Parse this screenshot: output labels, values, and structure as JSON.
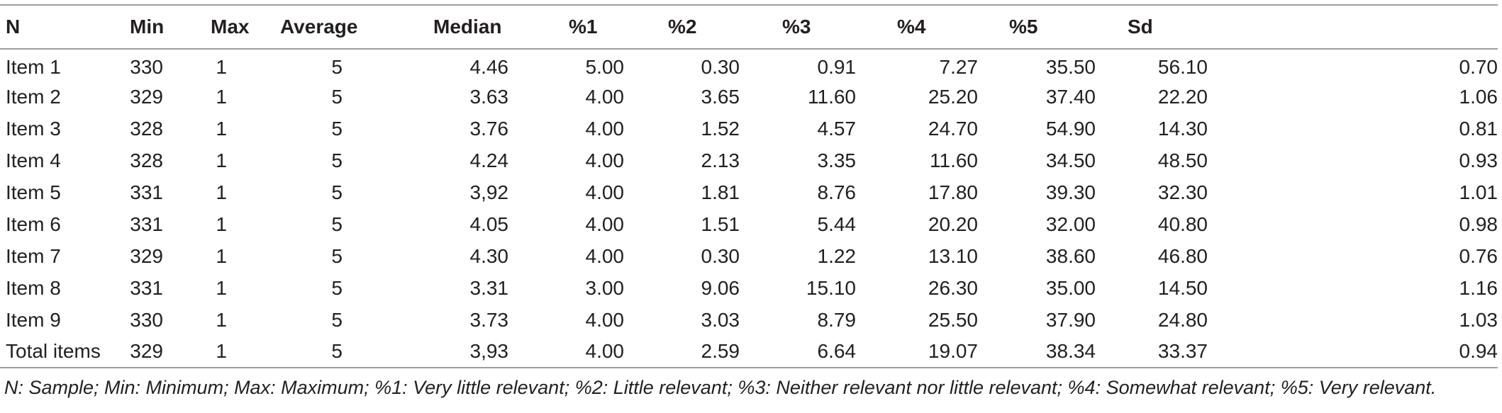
{
  "table": {
    "headers": [
      "N",
      "Min",
      "Max",
      "Average",
      "Median",
      "%1",
      "%2",
      "%3",
      "%4",
      "%5",
      "Sd",
      ""
    ],
    "rows": [
      [
        "Item 1",
        "330",
        "1",
        "5",
        "4.46",
        "5.00",
        "0.30",
        "0.91",
        "7.27",
        "35.50",
        "56.10",
        "0.70"
      ],
      [
        "Item 2",
        "329",
        "1",
        "5",
        "3.63",
        "4.00",
        "3.65",
        "11.60",
        "25.20",
        "37.40",
        "22.20",
        "1.06"
      ],
      [
        "Item 3",
        "328",
        "1",
        "5",
        "3.76",
        "4.00",
        "1.52",
        "4.57",
        "24.70",
        "54.90",
        "14.30",
        "0.81"
      ],
      [
        "Item 4",
        "328",
        "1",
        "5",
        "4.24",
        "4.00",
        "2.13",
        "3.35",
        "11.60",
        "34.50",
        "48.50",
        "0.93"
      ],
      [
        "Item 5",
        "331",
        "1",
        "5",
        "3,92",
        "4.00",
        "1.81",
        "8.76",
        "17.80",
        "39.30",
        "32.30",
        "1.01"
      ],
      [
        "Item 6",
        "331",
        "1",
        "5",
        "4.05",
        "4.00",
        "1.51",
        "5.44",
        "20.20",
        "32.00",
        "40.80",
        "0.98"
      ],
      [
        "Item 7",
        "329",
        "1",
        "5",
        "4.30",
        "4.00",
        "0.30",
        "1.22",
        "13.10",
        "38.60",
        "46.80",
        "0.76"
      ],
      [
        "Item 8",
        "331",
        "1",
        "5",
        "3.31",
        "3.00",
        "9.06",
        "15.10",
        "26.30",
        "35.00",
        "14.50",
        "1.16"
      ],
      [
        "Item 9",
        "330",
        "1",
        "5",
        "3.73",
        "4.00",
        "3.03",
        "8.79",
        "25.50",
        "37.90",
        "24.80",
        "1.03"
      ],
      [
        "Total items",
        "329",
        "1",
        "5",
        "3,93",
        "4.00",
        "2.59",
        "6.64",
        "19.07",
        "38.34",
        "33.37",
        "0.94"
      ]
    ]
  },
  "footnote": "N: Sample; Min: Minimum; Max: Maximum; %1: Very little relevant; %2: Little relevant; %3: Neither relevant nor little relevant; %4: Somewhat relevant; %5: Very relevant."
}
